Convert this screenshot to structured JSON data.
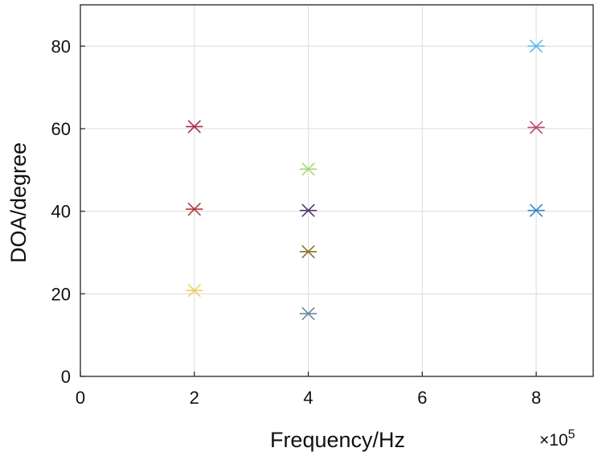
{
  "chart_data": {
    "type": "scatter",
    "marker": "asterisk",
    "xlabel": "Frequency/Hz",
    "ylabel": "DOA/degree",
    "x_multiplier": "×10",
    "x_multiplier_exp": "5",
    "xlim": [
      0,
      9
    ],
    "ylim": [
      0,
      90
    ],
    "xticks": [
      0,
      2,
      4,
      6,
      8
    ],
    "yticks": [
      0,
      20,
      40,
      60,
      80
    ],
    "grid": true,
    "points": [
      {
        "x": 2,
        "y": 60.5,
        "color": "#a8304a"
      },
      {
        "x": 2,
        "y": 40.5,
        "color": "#b03a3a"
      },
      {
        "x": 2,
        "y": 20.8,
        "color": "#f0d060"
      },
      {
        "x": 4,
        "y": 50.2,
        "color": "#a8d870"
      },
      {
        "x": 4,
        "y": 40.2,
        "color": "#503878"
      },
      {
        "x": 4,
        "y": 30.2,
        "color": "#8a7030"
      },
      {
        "x": 4,
        "y": 15.2,
        "color": "#6a8a9a"
      },
      {
        "x": 8,
        "y": 80.0,
        "color": "#60b8e8"
      },
      {
        "x": 8,
        "y": 60.3,
        "color": "#b84a7a"
      },
      {
        "x": 8,
        "y": 40.2,
        "color": "#3a88c8"
      }
    ]
  }
}
